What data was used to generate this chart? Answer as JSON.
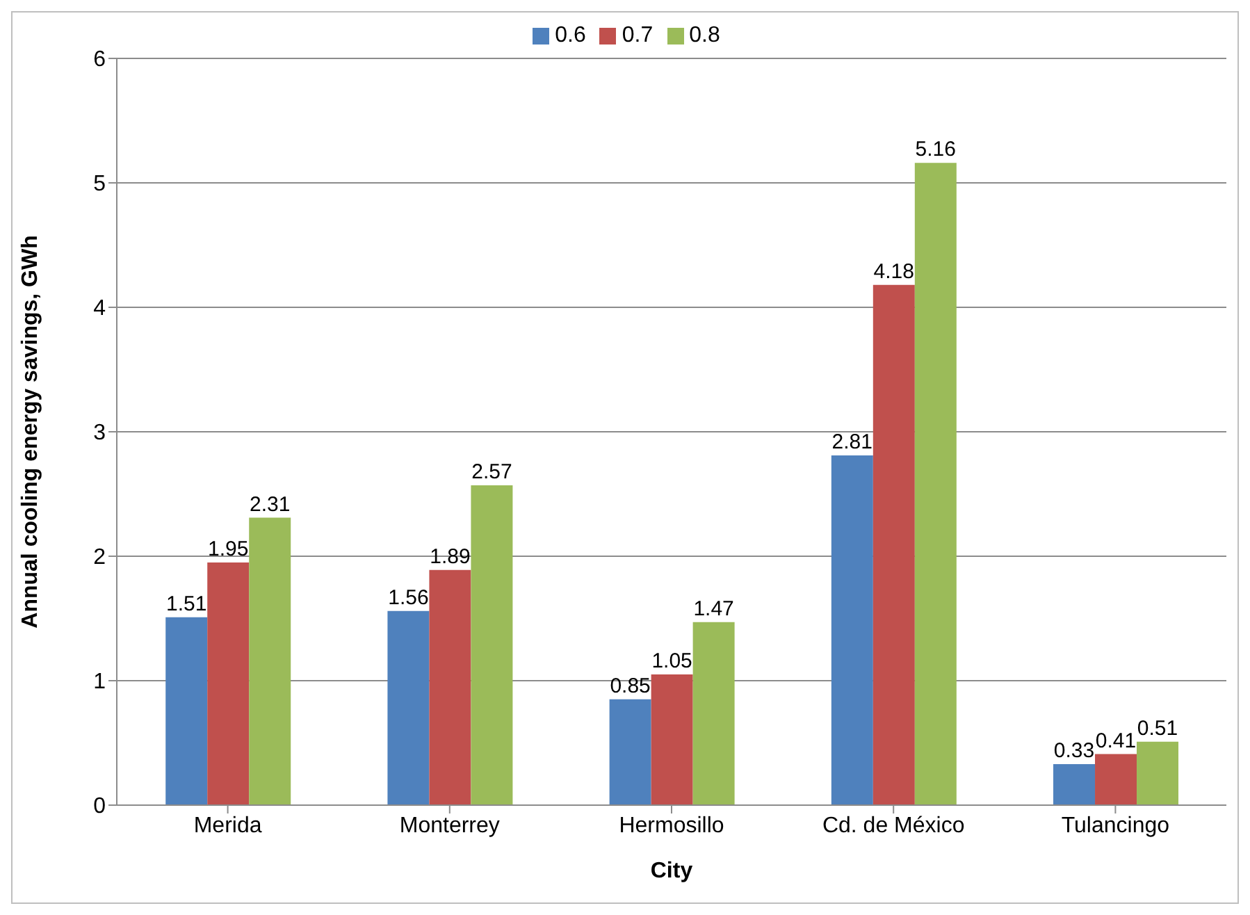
{
  "chart_data": {
    "type": "bar",
    "xlabel": "City",
    "ylabel": "Annual cooling energy savings, GWh",
    "categories": [
      "Merida",
      "Monterrey",
      "Hermosillo",
      "Cd. de México",
      "Tulancingo"
    ],
    "series": [
      {
        "name": "0.6",
        "color": "#4f81bd",
        "values": [
          1.51,
          1.56,
          0.85,
          2.81,
          0.33
        ]
      },
      {
        "name": "0.7",
        "color": "#c0504d",
        "values": [
          1.95,
          1.89,
          1.05,
          4.18,
          0.41
        ]
      },
      {
        "name": "0.8",
        "color": "#9bbb59",
        "values": [
          2.31,
          2.57,
          1.47,
          5.16,
          0.51
        ]
      }
    ],
    "ylim": [
      0,
      6
    ],
    "yticks": [
      0,
      1,
      2,
      3,
      4,
      5,
      6
    ],
    "grid": "y",
    "legend": "top",
    "data_labels": true
  }
}
